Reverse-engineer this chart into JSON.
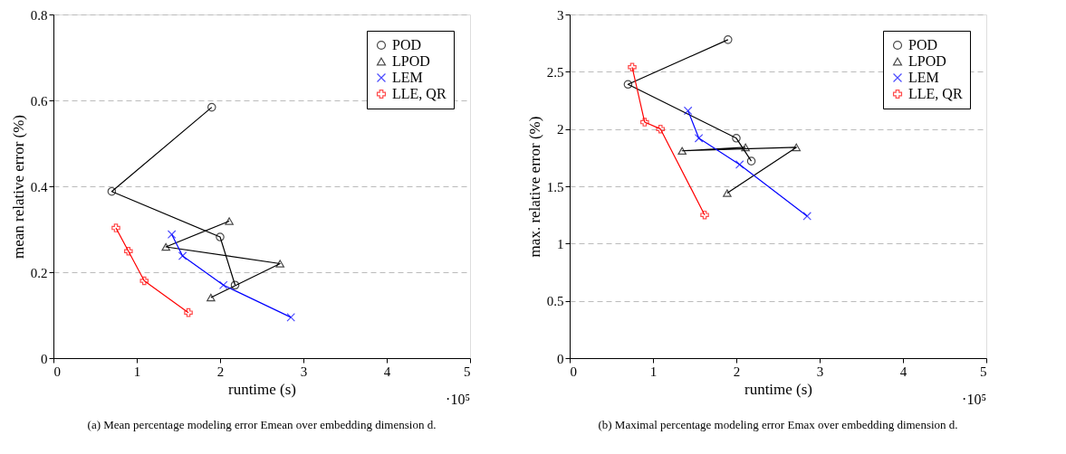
{
  "chart_data": [
    {
      "type": "line",
      "xlabel": "runtime (s)",
      "ylabel": "mean relative error (%)",
      "xlim": [
        0,
        5
      ],
      "xticks": [
        0,
        1,
        2,
        3,
        4,
        5
      ],
      "ylim": [
        0,
        0.8
      ],
      "yticks": [
        0,
        0.2,
        0.4,
        0.6,
        0.8
      ],
      "grid": "y",
      "legend": "top right",
      "line_style": "solid",
      "annotations": [
        "·10⁵",
        "(a) Mean percentage modeling error Emean over embedding dimension d."
      ],
      "series": [
        {
          "name": "POD",
          "color": "#000000",
          "marker": "circle",
          "x": [
            1.9,
            0.7,
            2.0,
            2.18
          ],
          "values": [
            0.584,
            0.388,
            0.282,
            0.17
          ]
        },
        {
          "name": "LPOD",
          "color": "#000000",
          "marker": "triangle",
          "x": [
            2.11,
            1.35,
            2.72,
            1.89
          ],
          "values": [
            0.319,
            0.259,
            0.22,
            0.141
          ]
        },
        {
          "name": "LEM",
          "color": "#0000ff",
          "marker": "x",
          "x": [
            1.42,
            1.55,
            2.04,
            2.85
          ],
          "values": [
            0.288,
            0.238,
            0.17,
            0.095
          ]
        },
        {
          "name": "LLE, QR",
          "color": "#ff0000",
          "marker": "cross",
          "x": [
            0.75,
            0.9,
            1.09,
            1.62
          ],
          "values": [
            0.303,
            0.249,
            0.18,
            0.106
          ]
        }
      ]
    },
    {
      "type": "line",
      "xlabel": "runtime (s)",
      "ylabel": "max. relative error (%)",
      "xlim": [
        0,
        5
      ],
      "xticks": [
        0,
        1,
        2,
        3,
        4,
        5
      ],
      "ylim": [
        0,
        3
      ],
      "yticks": [
        0,
        0.5,
        1,
        1.5,
        2,
        2.5,
        3
      ],
      "grid": "y",
      "legend": "top right",
      "line_style": "solid",
      "annotations": [
        "·10⁵",
        "(b) Maximal percentage modeling error Emax over embedding dimension d."
      ],
      "series": [
        {
          "name": "POD",
          "color": "#000000",
          "marker": "circle",
          "x": [
            1.9,
            0.7,
            2.0,
            2.18
          ],
          "values": [
            2.78,
            2.39,
            1.92,
            1.72
          ]
        },
        {
          "name": "LPOD",
          "color": "#000000",
          "marker": "triangle",
          "x": [
            2.11,
            1.35,
            2.72,
            1.89
          ],
          "values": [
            1.84,
            1.81,
            1.84,
            1.44
          ]
        },
        {
          "name": "LEM",
          "color": "#0000ff",
          "marker": "x",
          "x": [
            1.42,
            1.55,
            2.04,
            2.85
          ],
          "values": [
            2.16,
            1.92,
            1.69,
            1.24
          ]
        },
        {
          "name": "LLE, QR",
          "color": "#ff0000",
          "marker": "cross",
          "x": [
            0.75,
            0.9,
            1.09,
            1.62
          ],
          "values": [
            2.54,
            2.06,
            2.0,
            1.25
          ]
        }
      ]
    }
  ]
}
